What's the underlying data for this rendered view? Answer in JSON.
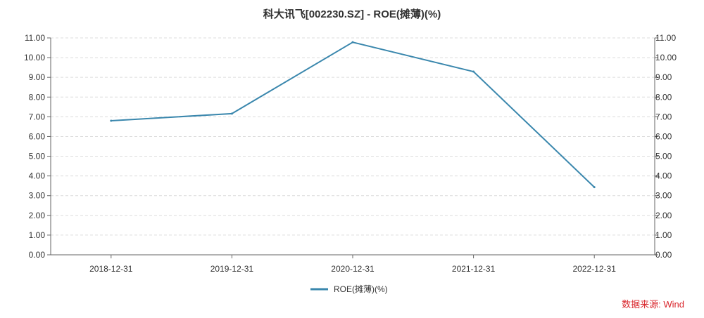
{
  "chart_data": {
    "type": "line",
    "title": "科大讯飞[002230.SZ] - ROE(摊薄)(%)",
    "categories": [
      "2018-12-31",
      "2019-12-31",
      "2020-12-31",
      "2021-12-31",
      "2022-12-31"
    ],
    "series": [
      {
        "name": "ROE(摊薄)(%)",
        "values": [
          6.8,
          7.16,
          10.78,
          9.29,
          3.43
        ],
        "color": "#3a87ad"
      }
    ],
    "ylim": [
      0,
      11
    ],
    "y_ticks": [
      "0.00",
      "1.00",
      "2.00",
      "3.00",
      "4.00",
      "5.00",
      "6.00",
      "7.00",
      "8.00",
      "9.00",
      "10.00",
      "11.00"
    ],
    "secondary_y_axis": true,
    "grid": "horizontal dashed",
    "legend_position": "bottom-center"
  },
  "source_note": "数据来源: Wind"
}
